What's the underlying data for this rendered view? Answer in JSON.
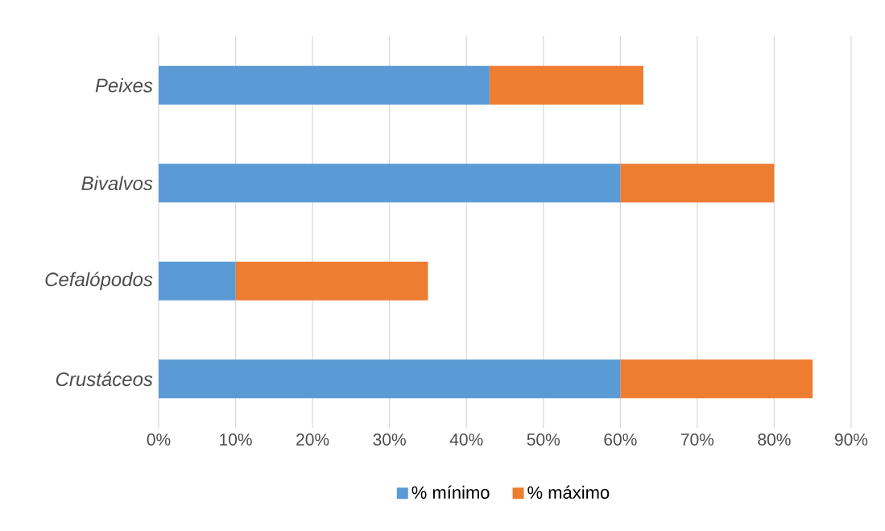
{
  "chart_data": {
    "type": "bar",
    "orientation": "horizontal",
    "stacked": true,
    "categories": [
      "Peixes",
      "Bivalvos",
      "Cefalópodos",
      "Crustáceos"
    ],
    "series": [
      {
        "name": "% mínimo",
        "color": "#5b9bd5",
        "values": [
          43,
          60,
          10,
          60
        ]
      },
      {
        "name": "% máximo",
        "color": "#ed7d31",
        "values": [
          20,
          20,
          25,
          25
        ]
      }
    ],
    "xlim": [
      0,
      90
    ],
    "xticks": [
      {
        "value": 0,
        "label": "0%"
      },
      {
        "value": 10,
        "label": "10%"
      },
      {
        "value": 20,
        "label": "20%"
      },
      {
        "value": 30,
        "label": "30%"
      },
      {
        "value": 40,
        "label": "40%"
      },
      {
        "value": 50,
        "label": "50%"
      },
      {
        "value": 60,
        "label": "60%"
      },
      {
        "value": 70,
        "label": "70%"
      },
      {
        "value": 80,
        "label": "80%"
      },
      {
        "value": 90,
        "label": "90%"
      }
    ],
    "grid": "x",
    "legend": "bottom"
  }
}
